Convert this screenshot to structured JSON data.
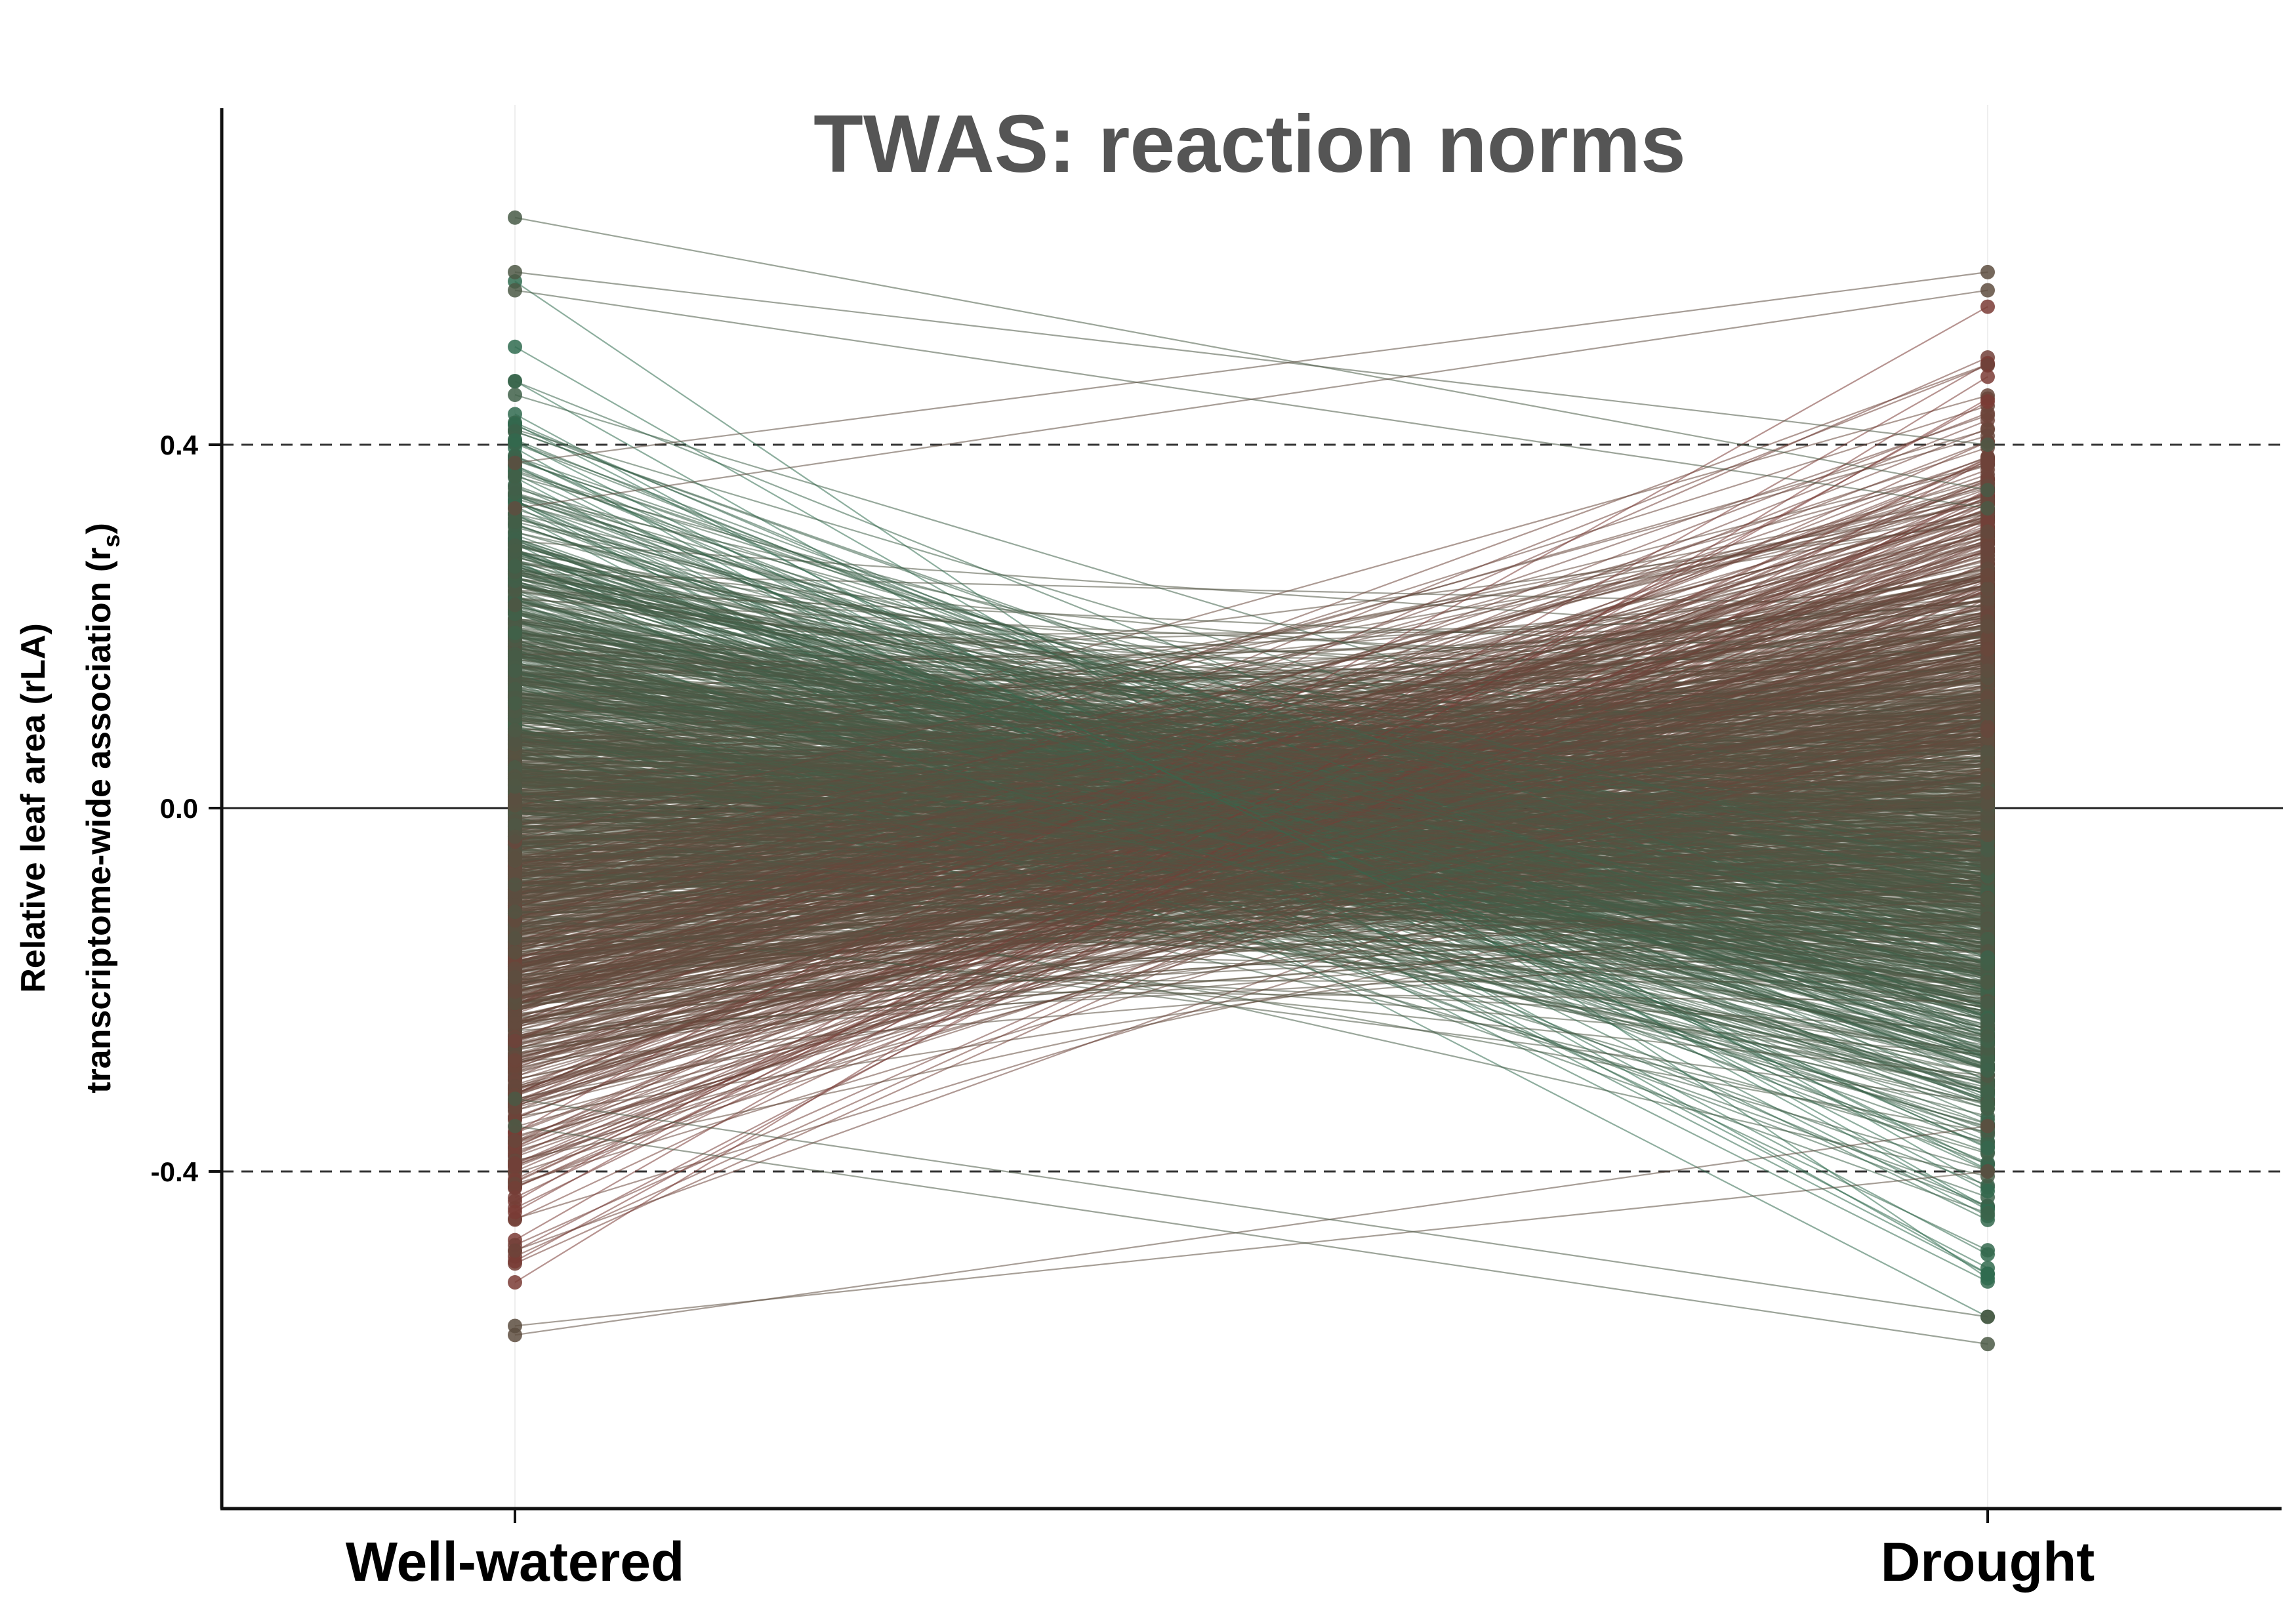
{
  "chart_data": {
    "type": "line",
    "title": "TWAS: reaction norms",
    "ylabel_line1": "Relative leaf area (rLA)",
    "ylabel_line2_main": "transcriptome-wide association (r",
    "ylabel_line2_sub": "s",
    "ylabel_line2_end": ")",
    "categories": [
      "Well-watered",
      "Drought"
    ],
    "yticks": [
      -0.4,
      0.0,
      0.4
    ],
    "ytick_labels": [
      "-0.4",
      "0.0",
      "0.4"
    ],
    "ylim": [
      -0.77,
      0.77
    ],
    "reference_lines": [
      {
        "y": 0.4,
        "style": "dashed"
      },
      {
        "y": 0.0,
        "style": "solid"
      },
      {
        "y": -0.4,
        "style": "dashed"
      }
    ],
    "colors": {
      "positive_drought": "#7a3b35",
      "negative_drought": "#2f6b4f",
      "title": "#555555"
    },
    "series_summary": "many genes; each line connects well-watered rs to drought rs",
    "extreme_points": [
      {
        "well_watered": 0.65,
        "drought": 0.35
      },
      {
        "well_watered": 0.59,
        "drought": 0.4
      },
      {
        "well_watered": 0.57,
        "drought": 0.33
      },
      {
        "well_watered": -0.58,
        "drought": -0.35
      },
      {
        "well_watered": -0.57,
        "drought": -0.4
      },
      {
        "well_watered": -0.35,
        "drought": -0.59
      },
      {
        "well_watered": -0.32,
        "drought": -0.56
      },
      {
        "well_watered": 0.38,
        "drought": 0.59
      },
      {
        "well_watered": 0.33,
        "drought": 0.57
      }
    ]
  }
}
